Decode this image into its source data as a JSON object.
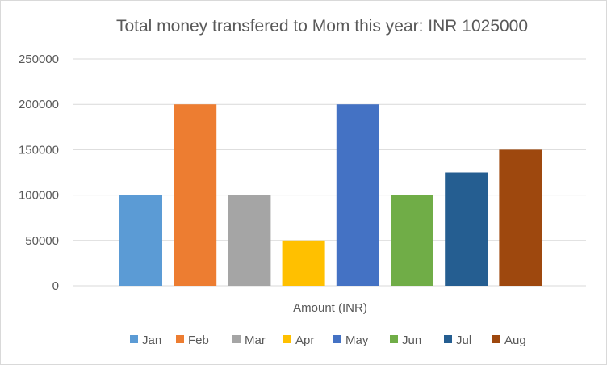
{
  "chart_data": {
    "type": "bar",
    "title": "Total money transfered to Mom this year: INR 1025000",
    "xlabel": "Amount (INR)",
    "ylabel": "",
    "ylim": [
      0,
      250000
    ],
    "yticks": [
      0,
      50000,
      100000,
      150000,
      200000,
      250000
    ],
    "grid": true,
    "legend_position": "bottom",
    "series": [
      {
        "name": "Jan",
        "value": 100000,
        "color": "#5b9bd5"
      },
      {
        "name": "Feb",
        "value": 200000,
        "color": "#ed7d31"
      },
      {
        "name": "Mar",
        "value": 100000,
        "color": "#a5a5a5"
      },
      {
        "name": "Apr",
        "value": 50000,
        "color": "#ffc000"
      },
      {
        "name": "May",
        "value": 200000,
        "color": "#4472c4"
      },
      {
        "name": "Jun",
        "value": 100000,
        "color": "#70ad47"
      },
      {
        "name": "Jul",
        "value": 125000,
        "color": "#255e91"
      },
      {
        "name": "Aug",
        "value": 150000,
        "color": "#9e480e"
      }
    ]
  }
}
